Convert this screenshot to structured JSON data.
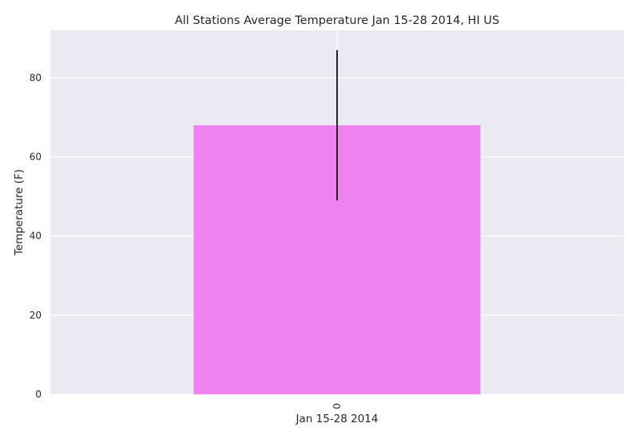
{
  "chart_data": {
    "type": "bar",
    "title": "All Stations Average Temperature Jan 15-28 2014, HI US",
    "xlabel": "Jan 15-28 2014",
    "ylabel": "Temperature (F)",
    "categories": [
      "0"
    ],
    "values": [
      68
    ],
    "error_bars": [
      {
        "category": "0",
        "low": 49,
        "high": 87
      }
    ],
    "ylim": [
      0,
      92
    ],
    "y_ticks": [
      "0",
      "20",
      "40",
      "60",
      "80"
    ],
    "x_tick_rotation": "vertical",
    "grid": true,
    "legend": "none",
    "colors": {
      "bar": "#EE82EE",
      "plot_background": "#EAEAF2",
      "grid": "#FFFFFF",
      "error_bar": "#262626"
    }
  }
}
